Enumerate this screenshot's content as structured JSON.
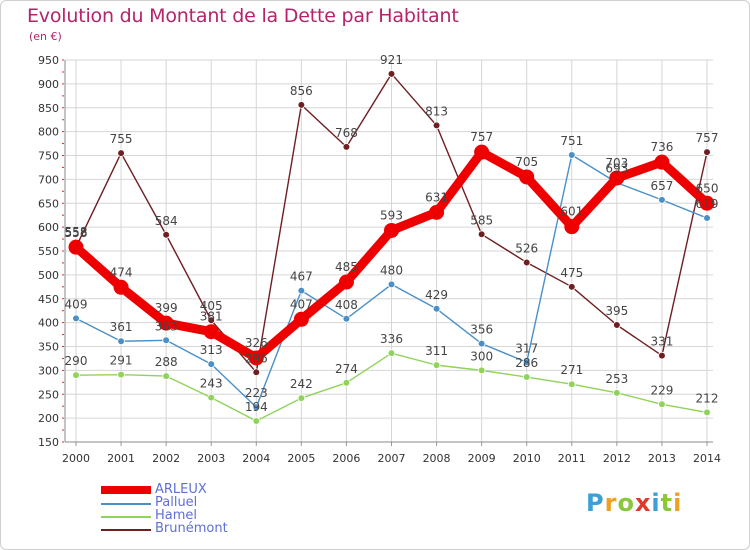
{
  "title": "Evolution du Montant de la Dette par Habitant",
  "subtitle": "(en €)",
  "brand": {
    "text": "Proxiti",
    "letters": [
      {
        "ch": "P",
        "color": "#3aa0d8"
      },
      {
        "ch": "r",
        "color": "#f0a020"
      },
      {
        "ch": "o",
        "color": "#8cc63f"
      },
      {
        "ch": "x",
        "color": "#e03a2a"
      },
      {
        "ch": "i",
        "color": "#3aa0d8"
      },
      {
        "ch": "t",
        "color": "#8cc63f"
      },
      {
        "ch": "i",
        "color": "#f0a020"
      }
    ]
  },
  "chart_data": {
    "type": "line",
    "title": "Evolution du Montant de la Dette par Habitant",
    "subtitle": "(en €)",
    "x": [
      "2000",
      "2001",
      "2002",
      "2003",
      "2004",
      "2005",
      "2006",
      "2007",
      "2008",
      "2009",
      "2010",
      "2011",
      "2012",
      "2013",
      "2014"
    ],
    "ylim": [
      150,
      950
    ],
    "yticks": [
      150,
      200,
      250,
      300,
      350,
      400,
      450,
      500,
      550,
      600,
      650,
      700,
      750,
      800,
      850,
      900,
      950
    ],
    "grid": true,
    "legend_position": "bottom-left",
    "series": [
      {
        "name": "ARLEUX",
        "color": "#ee0000",
        "values": [
          558,
          474,
          399,
          381,
          326,
          407,
          485,
          593,
          631,
          757,
          705,
          601,
          703,
          736,
          650
        ]
      },
      {
        "name": "Palluel",
        "color": "#4a90c8",
        "values": [
          409,
          361,
          363,
          313,
          223,
          467,
          408,
          480,
          429,
          356,
          317,
          751,
          693,
          657,
          619
        ]
      },
      {
        "name": "Hamel",
        "color": "#8fd35a",
        "values": [
          290,
          291,
          288,
          243,
          194,
          242,
          274,
          336,
          311,
          300,
          286,
          271,
          253,
          229,
          212
        ]
      },
      {
        "name": "Brunémont",
        "color": "#6e1f22",
        "values": [
          558,
          755,
          584,
          405,
          296,
          856,
          768,
          921,
          813,
          585,
          526,
          475,
          395,
          331,
          757
        ]
      }
    ]
  }
}
